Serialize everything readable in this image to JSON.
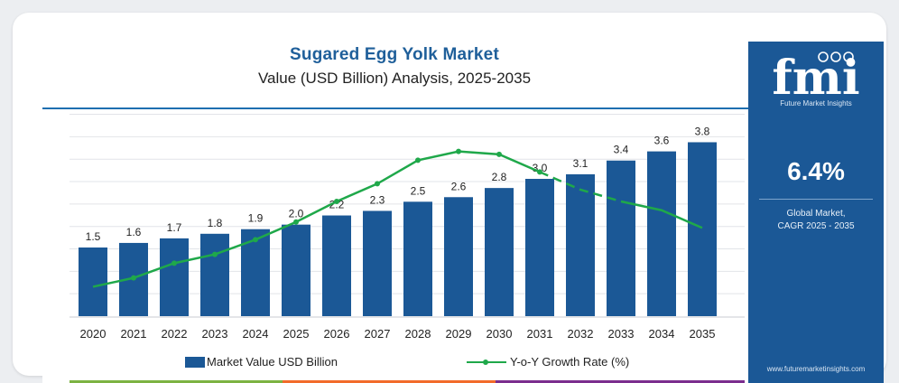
{
  "header": {
    "title": "Sugared Egg Yolk Market",
    "subtitle": "Value (USD Billion) Analysis, 2025-2035"
  },
  "chart_data": {
    "type": "bar",
    "categories": [
      "2020",
      "2021",
      "2022",
      "2023",
      "2024",
      "2025",
      "2026",
      "2027",
      "2028",
      "2029",
      "2030",
      "2031",
      "2032",
      "2033",
      "2034",
      "2035"
    ],
    "series": [
      {
        "name": "Market Value USD Billion",
        "type": "bar",
        "color": "#1b5896",
        "values": [
          1.5,
          1.6,
          1.7,
          1.8,
          1.9,
          2.0,
          2.2,
          2.3,
          2.5,
          2.6,
          2.8,
          3.0,
          3.1,
          3.4,
          3.6,
          3.8
        ]
      },
      {
        "name": "Y-o-Y Growth Rate (%)",
        "type": "line",
        "color": "#1fa84a",
        "values": [
          1.0,
          1.3,
          1.8,
          2.1,
          2.6,
          3.2,
          3.9,
          4.5,
          5.3,
          5.6,
          5.5,
          4.9,
          4.3,
          3.9,
          3.6,
          3.0
        ]
      }
    ],
    "title": "Sugared Egg Yolk Market",
    "subtitle": "Value (USD Billion) Analysis, 2025-2035",
    "ylim": [
      0,
      4.5
    ],
    "y2lim": [
      0,
      7
    ],
    "grid": true,
    "legend": "bottom"
  },
  "legend": {
    "bar_label": "Market Value USD Billion",
    "line_label": "Y-o-Y Growth Rate (%)"
  },
  "side_panel": {
    "logo_text": "fmi",
    "logo_tagline": "Future Market Insights",
    "cagr_value": "6.4%",
    "cagr_label_line1": "Global Market,",
    "cagr_label_line2": "CAGR 2025 - 2035",
    "website": "www.futuremarketinsights.com"
  },
  "colors": {
    "accent": "#1b5896",
    "title": "#1f5f9a",
    "growth_line": "#1fa84a",
    "stripe_green": "#7cb342",
    "stripe_orange": "#f26b2a",
    "stripe_purple": "#7b2d8e"
  }
}
